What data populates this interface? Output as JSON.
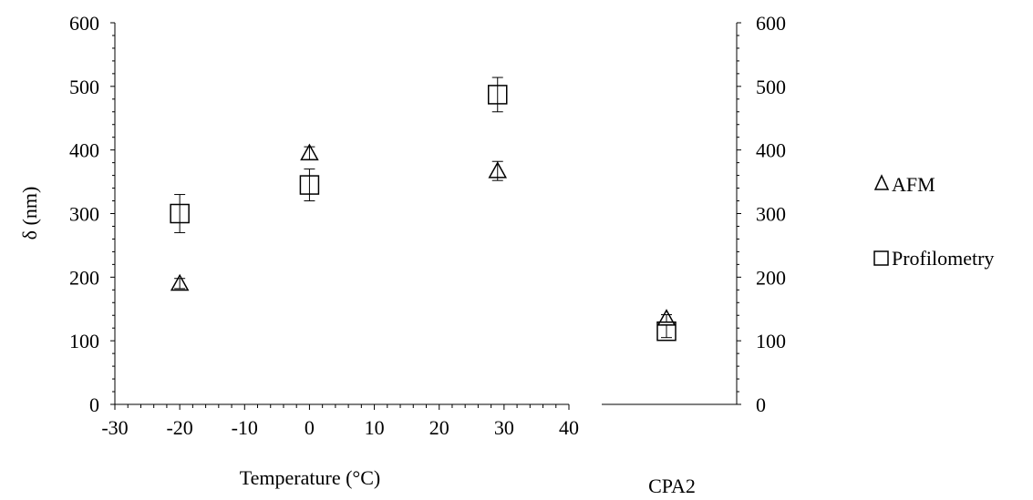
{
  "chart_data": {
    "type": "scatter",
    "ylabel": "δ (nm)",
    "xlabel": "Temperature (°C)",
    "xlim": [
      -30,
      40
    ],
    "ylim": [
      0,
      600
    ],
    "x_ticks": [
      "-30",
      "-20",
      "-10",
      "0",
      "10",
      "20",
      "30",
      "40"
    ],
    "y_ticks_left": [
      "0",
      "100",
      "200",
      "300",
      "400",
      "500",
      "600"
    ],
    "y_ticks_right": [
      "0",
      "100",
      "200",
      "300",
      "400",
      "500",
      "600"
    ],
    "side_panel_label": "CPA2",
    "error_bars": true,
    "legend_position": "right",
    "series": [
      {
        "name": "AFM",
        "marker": "triangle",
        "x": [
          -20,
          0,
          29
        ],
        "y": [
          190,
          395,
          367
        ],
        "yerr": [
          8,
          10,
          15
        ],
        "side_panel_value": 135,
        "side_panel_err": 6
      },
      {
        "name": "Profilometry",
        "marker": "square",
        "x": [
          -20,
          0,
          29
        ],
        "y": [
          300,
          345,
          487
        ],
        "yerr": [
          30,
          25,
          27
        ],
        "side_panel_value": 115,
        "side_panel_err": 10
      }
    ]
  }
}
